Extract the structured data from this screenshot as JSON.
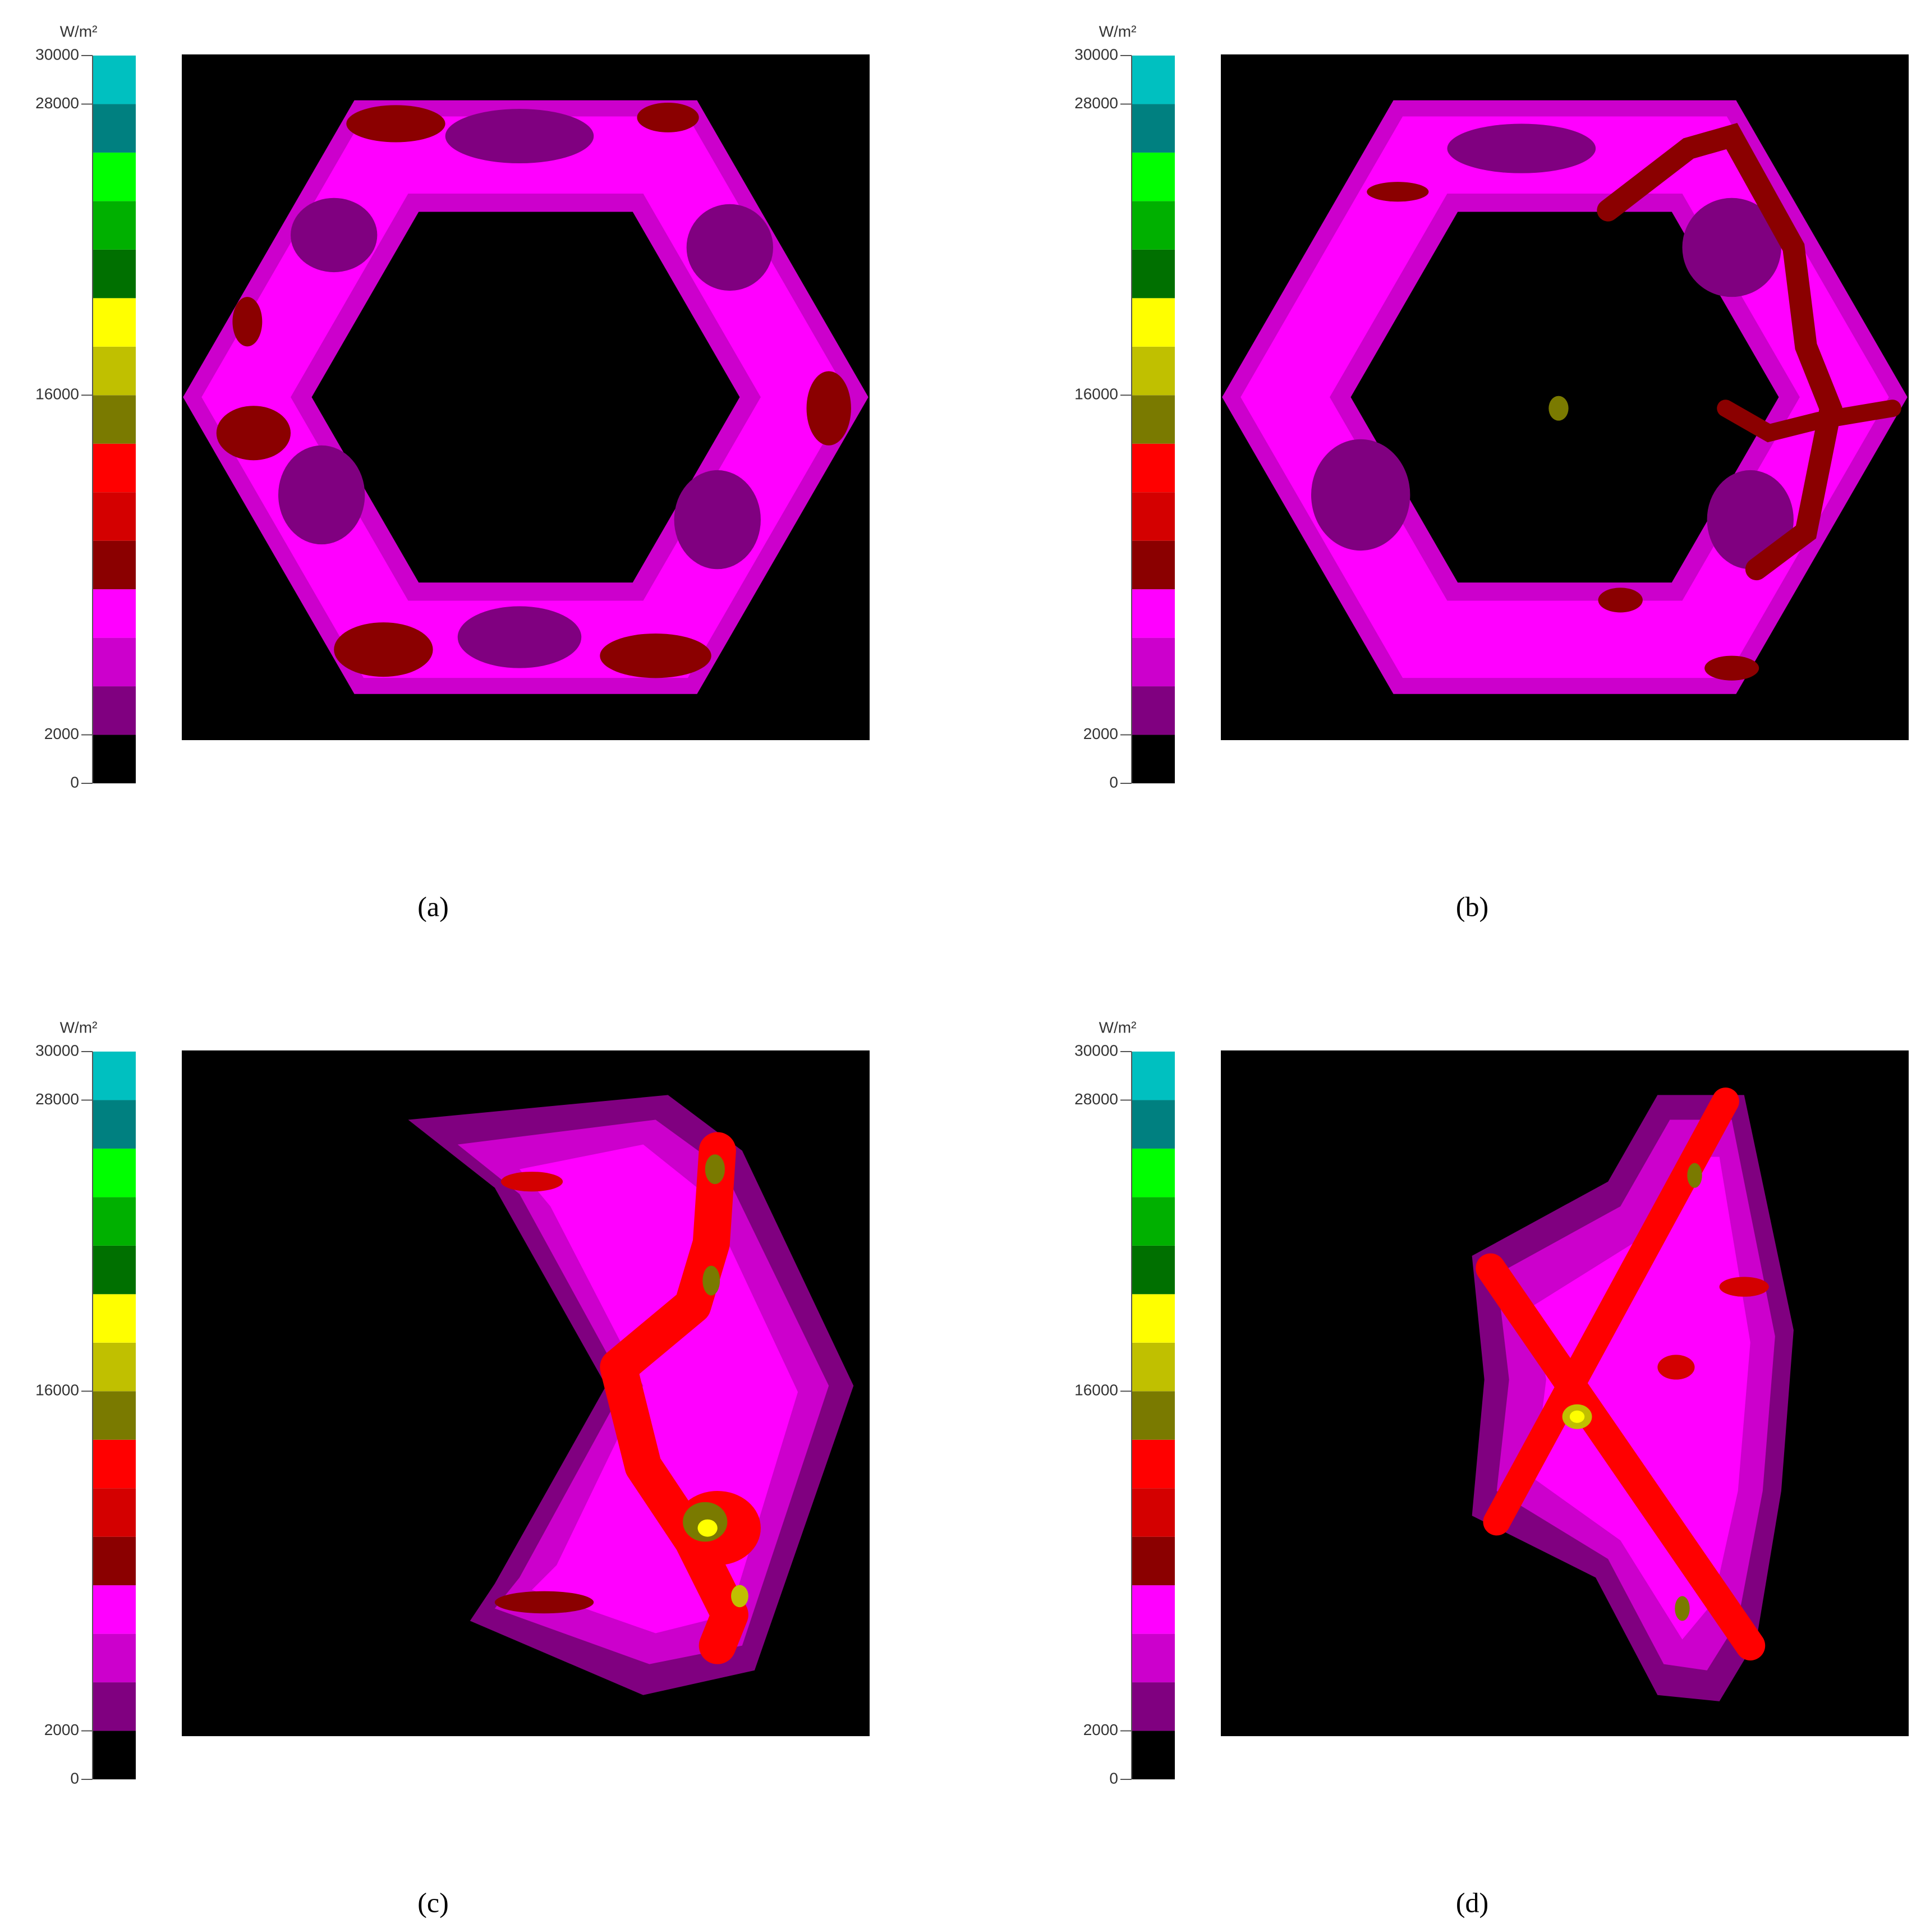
{
  "chart_data": [
    {
      "type": "heatmap",
      "label": "(a)",
      "colorbar": {
        "title": "W/m²",
        "lim": [
          0,
          30000
        ],
        "ticks": [
          0,
          2000,
          16000,
          28000,
          30000
        ],
        "levels": [
          0,
          2000,
          4000,
          6000,
          8000,
          10000,
          12000,
          14000,
          16000,
          18000,
          20000,
          22000,
          24000,
          26000,
          28000,
          30000
        ],
        "colors": [
          "#000000",
          "#800080",
          "#cc00cc",
          "#ff00ff",
          "#8b0000",
          "#d40000",
          "#ff0000",
          "#7a7a00",
          "#c0c000",
          "#ffff00",
          "#007000",
          "#00b000",
          "#00ff00",
          "#008080",
          "#00c0c0"
        ]
      }
    },
    {
      "type": "heatmap",
      "label": "(b)",
      "colorbar": {
        "title": "W/m²",
        "lim": [
          0,
          30000
        ],
        "ticks": [
          0,
          2000,
          16000,
          28000,
          30000
        ],
        "levels": [
          0,
          2000,
          4000,
          6000,
          8000,
          10000,
          12000,
          14000,
          16000,
          18000,
          20000,
          22000,
          24000,
          26000,
          28000,
          30000
        ],
        "colors": [
          "#000000",
          "#800080",
          "#cc00cc",
          "#ff00ff",
          "#8b0000",
          "#d40000",
          "#ff0000",
          "#7a7a00",
          "#c0c000",
          "#ffff00",
          "#007000",
          "#00b000",
          "#00ff00",
          "#008080",
          "#00c0c0"
        ]
      }
    },
    {
      "type": "heatmap",
      "label": "(c)",
      "colorbar": {
        "title": "W/m²",
        "lim": [
          0,
          30000
        ],
        "ticks": [
          0,
          2000,
          16000,
          28000,
          30000
        ],
        "levels": [
          0,
          2000,
          4000,
          6000,
          8000,
          10000,
          12000,
          14000,
          16000,
          18000,
          20000,
          22000,
          24000,
          26000,
          28000,
          30000
        ],
        "colors": [
          "#000000",
          "#800080",
          "#cc00cc",
          "#ff00ff",
          "#8b0000",
          "#d40000",
          "#ff0000",
          "#7a7a00",
          "#c0c000",
          "#ffff00",
          "#007000",
          "#00b000",
          "#00ff00",
          "#008080",
          "#00c0c0"
        ]
      }
    },
    {
      "type": "heatmap",
      "label": "(d)",
      "colorbar": {
        "title": "W/m²",
        "lim": [
          0,
          30000
        ],
        "ticks": [
          0,
          2000,
          16000,
          28000,
          30000
        ],
        "levels": [
          0,
          2000,
          4000,
          6000,
          8000,
          10000,
          12000,
          14000,
          16000,
          18000,
          20000,
          22000,
          24000,
          26000,
          28000,
          30000
        ],
        "colors": [
          "#000000",
          "#800080",
          "#cc00cc",
          "#ff00ff",
          "#8b0000",
          "#d40000",
          "#ff0000",
          "#7a7a00",
          "#c0c000",
          "#ffff00",
          "#007000",
          "#00b000",
          "#00ff00",
          "#008080",
          "#00c0c0"
        ]
      }
    }
  ]
}
